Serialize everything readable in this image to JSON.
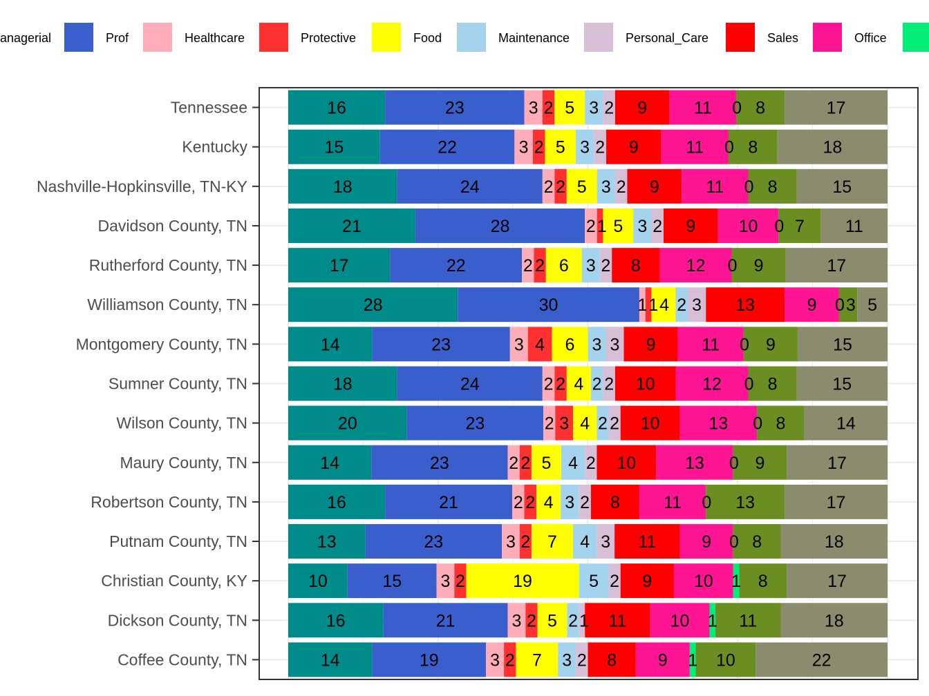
{
  "chart_data": {
    "type": "bar",
    "orientation": "horizontal",
    "stacked": true,
    "legend_position": "top",
    "grid": true,
    "xlim": [
      0,
      100
    ],
    "categories": [
      "Tennessee",
      "Kentucky",
      "Nashville-Hopkinsville, TN-KY",
      "Davidson County, TN",
      "Rutherford County, TN",
      "Williamson County, TN",
      "Montgomery County, TN",
      "Sumner County, TN",
      "Wilson County, TN",
      "Maury County, TN",
      "Robertson County, TN",
      "Putnam County, TN",
      "Christian County, KY",
      "Dickson County, TN",
      "Coffee County, TN"
    ],
    "series": [
      {
        "name": "anagerial",
        "color": "#008B8B",
        "values": [
          16,
          15,
          18,
          21,
          17,
          28,
          14,
          18,
          20,
          14,
          16,
          13,
          10,
          16,
          14
        ]
      },
      {
        "name": "Prof",
        "color": "#3A5FCD",
        "values": [
          23,
          22,
          24,
          28,
          22,
          30,
          23,
          24,
          23,
          23,
          21,
          23,
          15,
          21,
          19
        ]
      },
      {
        "name": "Healthcare",
        "color": "#FFAEB9",
        "values": [
          3,
          3,
          2,
          2,
          2,
          1,
          3,
          2,
          2,
          2,
          2,
          3,
          3,
          3,
          3
        ]
      },
      {
        "name": "Protective",
        "color": "#FF3030",
        "values": [
          2,
          2,
          2,
          1,
          2,
          1,
          4,
          2,
          3,
          2,
          2,
          2,
          2,
          2,
          2
        ]
      },
      {
        "name": "Food",
        "color": "#FFFF00",
        "values": [
          5,
          5,
          5,
          5,
          6,
          4,
          6,
          4,
          4,
          5,
          4,
          7,
          19,
          5,
          7
        ]
      },
      {
        "name": "Maintenance",
        "color": "#A4D3EE",
        "values": [
          3,
          3,
          3,
          3,
          3,
          2,
          3,
          2,
          2,
          4,
          3,
          4,
          5,
          2,
          3
        ]
      },
      {
        "name": "Personal_Care",
        "color": "#D8BFD8",
        "values": [
          2,
          2,
          2,
          2,
          2,
          3,
          3,
          2,
          2,
          2,
          2,
          3,
          2,
          1,
          2
        ]
      },
      {
        "name": "Sales",
        "color": "#FF0000",
        "values": [
          9,
          9,
          9,
          9,
          8,
          13,
          9,
          10,
          10,
          10,
          8,
          11,
          9,
          11,
          8
        ]
      },
      {
        "name": "Office",
        "color": "#FF1493",
        "values": [
          11,
          11,
          11,
          10,
          12,
          9,
          11,
          12,
          13,
          13,
          11,
          9,
          10,
          10,
          9
        ]
      },
      {
        "name": "",
        "color": "#00EE76",
        "values": [
          0,
          0,
          0,
          0,
          0,
          0,
          0,
          0,
          0,
          0,
          0,
          0,
          1,
          1,
          1
        ]
      },
      {
        "name": "",
        "color": "#6B8E23",
        "values": [
          8,
          8,
          8,
          7,
          9,
          3,
          9,
          8,
          8,
          9,
          13,
          8,
          8,
          11,
          10
        ]
      },
      {
        "name": "",
        "color": "#8B8B6E",
        "values": [
          17,
          18,
          15,
          11,
          17,
          5,
          15,
          15,
          14,
          17,
          17,
          18,
          17,
          18,
          22
        ]
      }
    ]
  }
}
